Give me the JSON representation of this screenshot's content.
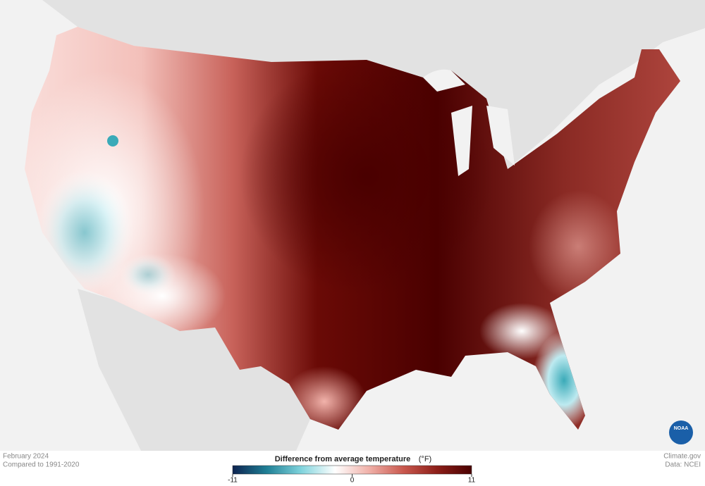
{
  "footer": {
    "date": "February 2024",
    "baseline": "Compared to 1991-2020",
    "site": "Climate.gov",
    "source": "Data: NCEI",
    "logo": "NOAA"
  },
  "legend": {
    "title": "Difference from average temperature",
    "unit": "(°F)",
    "range": [
      -11,
      11
    ],
    "ticks": [
      -11,
      0,
      11
    ],
    "colors": [
      "#0d2350",
      "#1f7f95",
      "#7fd3dc",
      "#ffffff",
      "#f0b0a8",
      "#c9584e",
      "#8c1e18",
      "#4a0000"
    ]
  }
}
